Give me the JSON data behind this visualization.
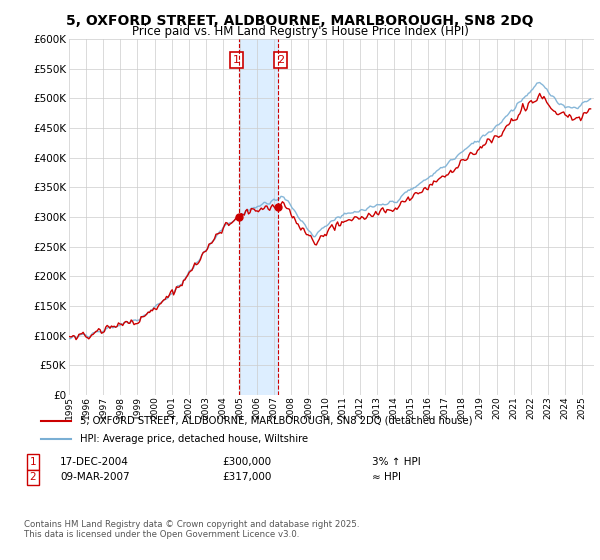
{
  "title": "5, OXFORD STREET, ALDBOURNE, MARLBOROUGH, SN8 2DQ",
  "subtitle": "Price paid vs. HM Land Registry's House Price Index (HPI)",
  "ylabel_ticks": [
    "£0",
    "£50K",
    "£100K",
    "£150K",
    "£200K",
    "£250K",
    "£300K",
    "£350K",
    "£400K",
    "£450K",
    "£500K",
    "£550K",
    "£600K"
  ],
  "ytick_values": [
    0,
    50000,
    100000,
    150000,
    200000,
    250000,
    300000,
    350000,
    400000,
    450000,
    500000,
    550000,
    600000
  ],
  "ylim": [
    0,
    600000
  ],
  "legend_property_label": "5, OXFORD STREET, ALDBOURNE, MARLBOROUGH, SN8 2DQ (detached house)",
  "legend_hpi_label": "HPI: Average price, detached house, Wiltshire",
  "transaction1_date": "17-DEC-2004",
  "transaction1_price": 300000,
  "transaction1_relation": "3% ↑ HPI",
  "transaction2_date": "09-MAR-2007",
  "transaction2_price": 317000,
  "transaction2_relation": "≈ HPI",
  "footnote": "Contains HM Land Registry data © Crown copyright and database right 2025.\nThis data is licensed under the Open Government Licence v3.0.",
  "property_line_color": "#cc0000",
  "hpi_line_color": "#7aafd4",
  "highlight_color": "#ddeeff",
  "highlight_border_color": "#cc0000",
  "background_color": "#ffffff",
  "grid_color": "#cccccc",
  "box_color": "#cc0000",
  "sale1_year": 2004.958,
  "sale2_year": 2007.208,
  "sale1_price": 300000,
  "sale2_price": 317000
}
